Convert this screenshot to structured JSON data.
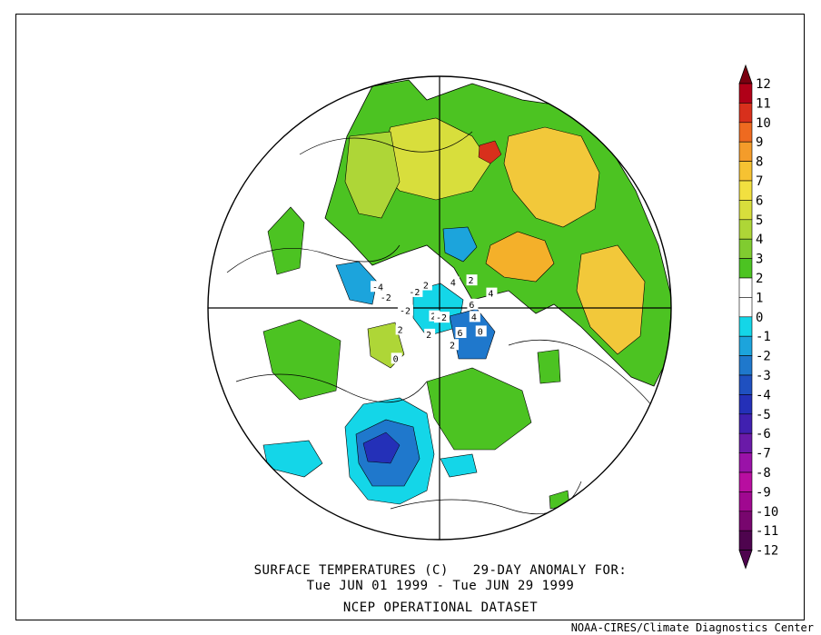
{
  "title": {
    "line1": "SURFACE TEMPERATURES (C)   29-DAY ANOMALY FOR:",
    "line2": "Tue JUN 01 1999 - Tue JUN 29 1999",
    "line3": "NCEP OPERATIONAL DATASET"
  },
  "credit": "NOAA-CIRES/Climate Diagnostics Center",
  "colorbar": {
    "labels": [
      "12",
      "11",
      "10",
      "9",
      "8",
      "7",
      "6",
      "5",
      "4",
      "3",
      "2",
      "1",
      "0",
      "-1",
      "-2",
      "-3",
      "-4",
      "-5",
      "-6",
      "-7",
      "-8",
      "-9",
      "-10",
      "-11",
      "-12"
    ],
    "colors": [
      "#7a0010",
      "#b00018",
      "#d8301c",
      "#ee6a20",
      "#f49c2a",
      "#f6c232",
      "#f2e040",
      "#d8de3c",
      "#aed637",
      "#80cc30",
      "#4cc322",
      "#ffffff",
      "#ffffff",
      "#14d6e8",
      "#1ca4dc",
      "#1f78cc",
      "#1f50c0",
      "#2430b8",
      "#4020b0",
      "#6a1aa8",
      "#9a12a8",
      "#b80ea0",
      "#a00890",
      "#78066e",
      "#4e044e"
    ]
  },
  "map": {
    "projection": "north polar stereographic",
    "contour_labels": [
      {
        "text": "2",
        "lon": 20,
        "lat": 52
      },
      {
        "text": "0",
        "lon": 60,
        "lat": 45
      },
      {
        "text": "4",
        "lon": 75,
        "lat": 55
      },
      {
        "text": "6",
        "lon": 95,
        "lat": 58
      },
      {
        "text": "2",
        "lon": 130,
        "lat": 50
      },
      {
        "text": "-2",
        "lon": -100,
        "lat": 38
      },
      {
        "text": "-4",
        "lon": -108,
        "lat": 30
      },
      {
        "text": "-2",
        "lon": -85,
        "lat": 55
      },
      {
        "text": "2",
        "lon": -20,
        "lat": 62
      },
      {
        "text": "2",
        "lon": -60,
        "lat": 48
      },
      {
        "text": "6",
        "lon": 40,
        "lat": 58
      },
      {
        "text": "4",
        "lon": 150,
        "lat": 62
      },
      {
        "text": "2",
        "lon": -150,
        "lat": 65
      },
      {
        "text": "-2",
        "lon": -120,
        "lat": 60
      },
      {
        "text": "0",
        "lon": -40,
        "lat": 30
      },
      {
        "text": "4",
        "lon": 105,
        "lat": 40
      },
      {
        "text": "2",
        "lon": -30,
        "lat": 80
      },
      {
        "text": "-2",
        "lon": 0,
        "lat": 80
      }
    ]
  }
}
